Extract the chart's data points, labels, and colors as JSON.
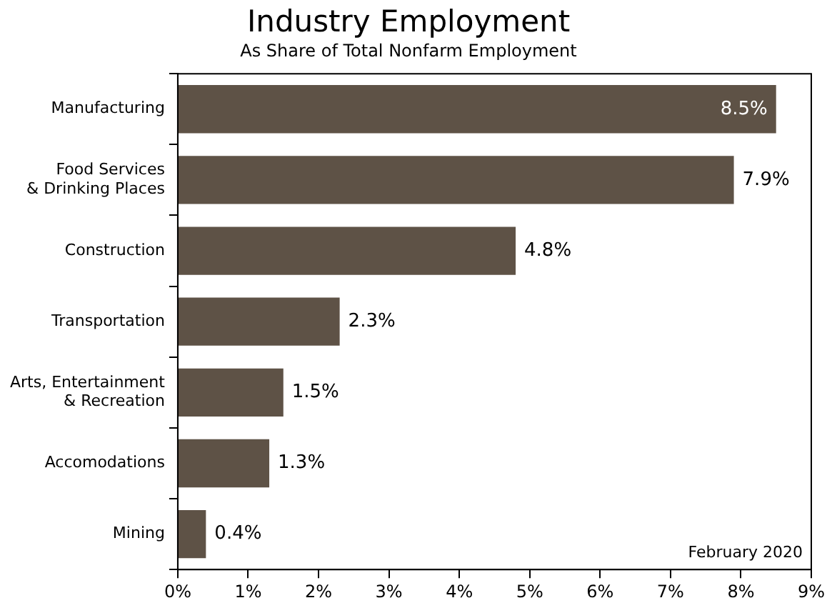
{
  "chart_data": {
    "type": "bar",
    "orientation": "horizontal",
    "title": "Industry Employment",
    "subtitle": "As Share of Total Nonfarm Employment",
    "categories": [
      "Manufacturing",
      "Food Services\n& Drinking Places",
      "Construction",
      "Transportation",
      "Arts, Entertainment\n& Recreation",
      "Accomodations",
      "Mining"
    ],
    "values": [
      8.5,
      7.9,
      4.8,
      2.3,
      1.5,
      1.3,
      0.4
    ],
    "value_labels": [
      "8.5%",
      "7.9%",
      "4.8%",
      "2.3%",
      "1.5%",
      "1.3%",
      "0.4%"
    ],
    "color": "#5e5246",
    "xlim": [
      0,
      9
    ],
    "xticks": [
      {
        "value": 0,
        "label": "0%"
      },
      {
        "value": 1,
        "label": "1%"
      },
      {
        "value": 2,
        "label": "2%"
      },
      {
        "value": 3,
        "label": "3%"
      },
      {
        "value": 4,
        "label": "4%"
      },
      {
        "value": 5,
        "label": "5%"
      },
      {
        "value": 6,
        "label": "6%"
      },
      {
        "value": 7,
        "label": "7%"
      },
      {
        "value": 8,
        "label": "8%"
      },
      {
        "value": 9,
        "label": "9%"
      }
    ],
    "annotations": [
      "February 2020"
    ],
    "grid": false,
    "legend": false
  }
}
